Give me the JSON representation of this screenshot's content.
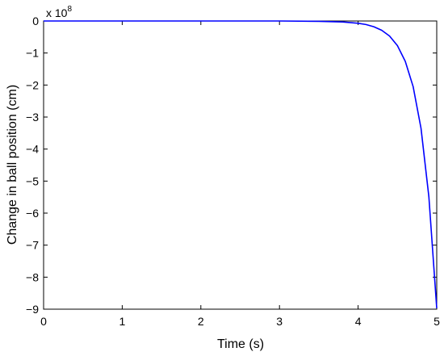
{
  "chart_data": {
    "type": "line",
    "title": "",
    "xlabel": "Time (s)",
    "ylabel": "Change in ball position (cm)",
    "y_multiplier_label": "x 10",
    "y_multiplier_exponent": "8",
    "xlim": [
      0,
      5
    ],
    "ylim": [
      -9,
      0
    ],
    "xticks": [
      0,
      1,
      2,
      3,
      4,
      5
    ],
    "yticks": [
      0,
      -1,
      -2,
      -3,
      -4,
      -5,
      -6,
      -7,
      -8,
      -9
    ],
    "grid": false,
    "legend": "none",
    "series": [
      {
        "color": "#0000ff",
        "x": [
          0,
          1,
          2,
          3,
          3.5,
          3.8,
          4.0,
          4.1,
          4.2,
          4.3,
          4.4,
          4.5,
          4.6,
          4.7,
          4.8,
          4.9,
          5.0
        ],
        "y": [
          0,
          0,
          0,
          0,
          -0.01,
          -0.03,
          -0.07,
          -0.11,
          -0.18,
          -0.29,
          -0.47,
          -0.77,
          -1.26,
          -2.05,
          -3.35,
          -5.49,
          -8.97
        ]
      }
    ]
  }
}
